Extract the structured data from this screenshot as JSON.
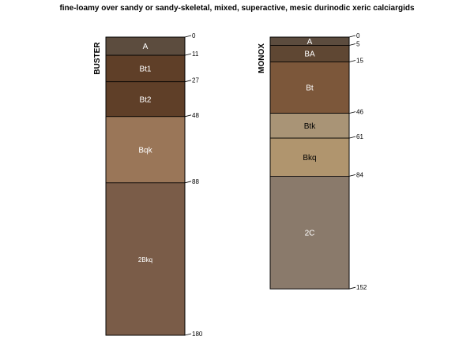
{
  "title": "fine-loamy over sandy or sandy-skeletal, mixed, superactive, mesic durinodic xeric calciargids",
  "chart_data": {
    "type": "soil-profile",
    "depth_units": "cm",
    "profiles": [
      {
        "name": "BUSTER",
        "horizons": [
          {
            "name": "A",
            "top": 0,
            "bottom": 11,
            "color": "#5c4c3e",
            "label_color": "#ffffff"
          },
          {
            "name": "Bt1",
            "top": 11,
            "bottom": 27,
            "color": "#5f3f28",
            "label_color": "#ffffff"
          },
          {
            "name": "Bt2",
            "top": 27,
            "bottom": 48,
            "color": "#5f3f28",
            "label_color": "#ffffff"
          },
          {
            "name": "Bqk",
            "top": 48,
            "bottom": 88,
            "color": "#9a7658",
            "label_color": "#ffffff"
          },
          {
            "name": "2Bkq",
            "top": 88,
            "bottom": 180,
            "color": "#7a5c48",
            "label_color": "#ffffff"
          }
        ],
        "depth_labels": [
          "0",
          "11",
          "27",
          "48",
          "88",
          "180"
        ]
      },
      {
        "name": "MONOX",
        "horizons": [
          {
            "name": "A",
            "top": 0,
            "bottom": 5,
            "color": "#5c4c3e",
            "label_color": "#ffffff"
          },
          {
            "name": "BA",
            "top": 5,
            "bottom": 15,
            "color": "#5f4733",
            "label_color": "#ffffff"
          },
          {
            "name": "Bt",
            "top": 15,
            "bottom": 46,
            "color": "#7c573a",
            "label_color": "#ffffff"
          },
          {
            "name": "Btk",
            "top": 46,
            "bottom": 61,
            "color": "#a99476",
            "label_color": "#000000"
          },
          {
            "name": "Bkq",
            "top": 61,
            "bottom": 84,
            "color": "#b0956e",
            "label_color": "#000000"
          },
          {
            "name": "2C",
            "top": 84,
            "bottom": 152,
            "color": "#8a7a6b",
            "label_color": "#ffffff"
          }
        ],
        "depth_labels": [
          "0",
          "5",
          "15",
          "46",
          "61",
          "84",
          "152"
        ]
      }
    ]
  }
}
